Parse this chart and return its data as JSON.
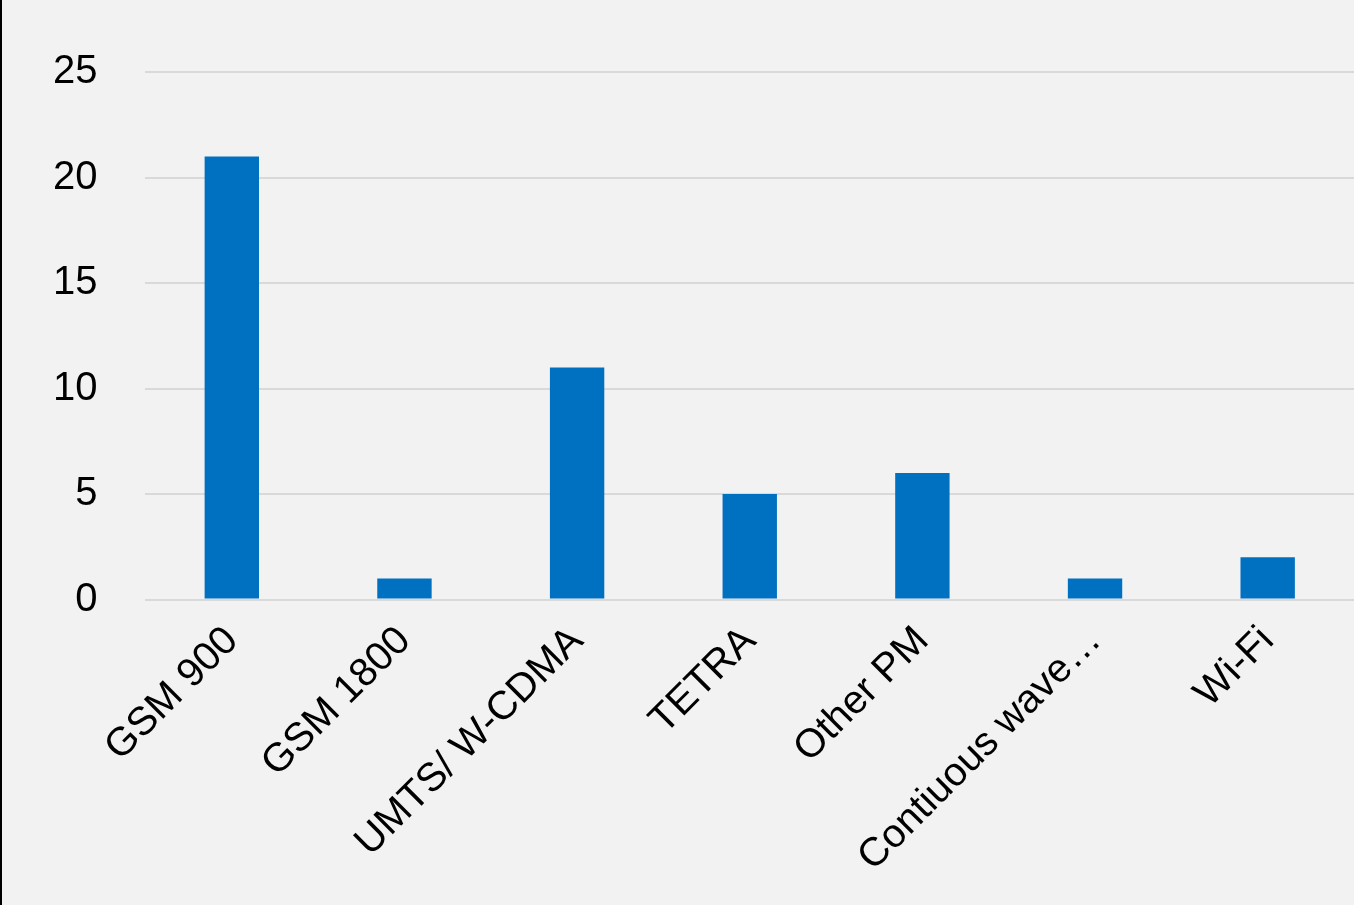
{
  "chart_data": {
    "type": "bar",
    "categories": [
      "GSM 900",
      "GSM 1800",
      "UMTS/ W-CDMA",
      "TETRA",
      "Other PM",
      "Contiuous wave…",
      "Wi-Fi"
    ],
    "values": [
      21,
      1,
      11,
      5,
      6,
      1,
      2
    ],
    "color": "#0070c0",
    "ylim": [
      0,
      25
    ],
    "yticks": [
      0,
      5,
      10,
      15,
      20,
      25
    ],
    "grid": "y"
  }
}
